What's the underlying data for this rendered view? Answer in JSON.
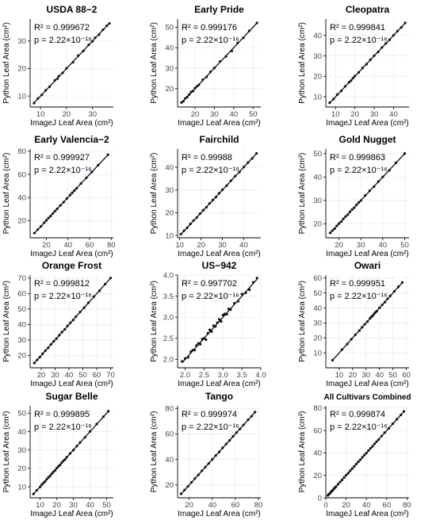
{
  "figure": {
    "xlabel": "ImageJ Leaf Area (cm²)",
    "ylabel": "Python Leaf Area (cm²)",
    "colors": {
      "points": "#111111",
      "fit_line": "#000000",
      "identity_line": "#2b2f9e",
      "grid": "#e6e6e6",
      "axis": "#000000"
    }
  },
  "chart_data": [
    {
      "type": "scatter",
      "title": "USDA 88−2",
      "r2": "R² = 0.999672",
      "p": "p = 2.22×10⁻¹⁶",
      "xlim": [
        6,
        38
      ],
      "ylim": [
        6,
        38
      ],
      "xticks": [
        10,
        20,
        30
      ],
      "yticks": [
        10,
        20,
        30
      ],
      "x": [
        7.5,
        9,
        10.5,
        12,
        13.5,
        15.5,
        16.5,
        17,
        18.5,
        20,
        22.5,
        24.5,
        26.5,
        28.5,
        30,
        31,
        32.5,
        34,
        35.5,
        36.5
      ],
      "y": [
        7.4,
        9.1,
        10.4,
        12.1,
        13.4,
        15.7,
        16.3,
        17.2,
        18.4,
        20.1,
        22.3,
        24.7,
        26.4,
        28.6,
        29.9,
        31.2,
        32.3,
        34.1,
        35.6,
        36.4
      ]
    },
    {
      "type": "scatter",
      "title": "Early Pride",
      "r2": "R² = 0.999176",
      "p": "p = 2.22×10⁻¹⁶",
      "xlim": [
        11,
        54
      ],
      "ylim": [
        11,
        54
      ],
      "xticks": [
        20,
        30,
        40,
        50
      ],
      "yticks": [
        20,
        30,
        40,
        50
      ],
      "x": [
        13,
        14,
        15,
        16,
        17,
        18,
        19,
        20,
        21,
        22,
        24,
        26,
        28,
        30,
        33,
        36,
        39,
        42,
        45,
        48,
        52
      ],
      "y": [
        13.2,
        13.8,
        15.2,
        15.9,
        17.1,
        18.3,
        18.8,
        20.2,
        21.1,
        21.8,
        24.3,
        25.7,
        28.2,
        30.1,
        33.3,
        35.7,
        38.4,
        42.3,
        44.8,
        48.2,
        52.1
      ]
    },
    {
      "type": "scatter",
      "title": "Cleopatra",
      "r2": "R² = 0.999841",
      "p": "p = 2.22×10⁻¹⁶",
      "xlim": [
        5,
        48
      ],
      "ylim": [
        5,
        48
      ],
      "xticks": [
        10,
        20,
        30,
        40
      ],
      "yticks": [
        10,
        20,
        30,
        40
      ],
      "x": [
        7,
        9,
        11,
        13,
        15,
        17,
        18,
        19,
        20,
        22,
        24,
        26,
        28,
        30,
        32,
        34,
        36,
        38,
        40,
        42,
        44,
        46
      ],
      "y": [
        7.1,
        8.9,
        11.1,
        12.9,
        15.1,
        17.1,
        17.9,
        19.1,
        20.1,
        21.9,
        24.1,
        25.9,
        28.1,
        30.1,
        31.9,
        34.1,
        36.1,
        37.9,
        40.1,
        42.1,
        43.9,
        46.1
      ]
    },
    {
      "type": "scatter",
      "title": "Early Valencia−2",
      "r2": "R² = 0.999927",
      "p": "p = 2.22×10⁻¹⁶",
      "xlim": [
        5,
        82
      ],
      "ylim": [
        5,
        82
      ],
      "xticks": [
        20,
        40,
        60,
        80
      ],
      "yticks": [
        20,
        40,
        60,
        80
      ],
      "x": [
        9,
        12,
        15,
        18,
        20,
        22,
        24,
        26,
        28,
        30,
        33,
        36,
        39,
        42,
        44,
        46,
        48,
        52,
        57,
        62,
        68,
        77
      ],
      "y": [
        9.1,
        12.1,
        14.9,
        18.1,
        20.1,
        22.1,
        23.9,
        26.1,
        28.1,
        30.1,
        33.1,
        35.9,
        39.1,
        42.1,
        44.1,
        46.1,
        47.9,
        52.1,
        57.1,
        62.1,
        68.1,
        77.1
      ]
    },
    {
      "type": "scatter",
      "title": "Fairchild",
      "r2": "R² = 0.99988",
      "p": "p = 2.22×10⁻¹⁶",
      "xlim": [
        9,
        48
      ],
      "ylim": [
        9,
        48
      ],
      "xticks": [
        10,
        20,
        30,
        40
      ],
      "yticks": [
        10,
        20,
        30,
        40
      ],
      "x": [
        10.5,
        12,
        13.5,
        15,
        16.5,
        18,
        19.5,
        21,
        22.5,
        24,
        25.5,
        27,
        28.5,
        30,
        32,
        34,
        36,
        38,
        40,
        42,
        44,
        46
      ],
      "y": [
        10.6,
        12.1,
        13.4,
        15.1,
        16.6,
        17.9,
        19.6,
        21.1,
        22.4,
        24.1,
        25.6,
        26.9,
        28.6,
        30.1,
        31.9,
        34.1,
        36.1,
        37.9,
        40.1,
        42.1,
        43.9,
        46.1
      ]
    },
    {
      "type": "scatter",
      "title": "Gold Nugget",
      "r2": "R² = 0.999863",
      "p": "p = 2.22×10⁻¹⁶",
      "xlim": [
        14,
        52
      ],
      "ylim": [
        14,
        52
      ],
      "xticks": [
        20,
        30,
        40,
        50
      ],
      "yticks": [
        20,
        30,
        40,
        50
      ],
      "x": [
        16,
        17,
        18,
        19,
        20,
        21,
        22,
        23,
        24,
        25,
        26,
        27,
        28,
        29,
        30,
        32,
        34,
        36,
        38,
        40,
        43,
        46,
        50
      ],
      "y": [
        16.1,
        17.1,
        17.9,
        19.1,
        20.1,
        20.9,
        22.1,
        23.1,
        23.9,
        25.1,
        26.1,
        26.9,
        28.1,
        29.1,
        29.9,
        32.1,
        34.1,
        35.9,
        38.1,
        40.1,
        42.9,
        46.1,
        50.1
      ]
    },
    {
      "type": "scatter",
      "title": "Orange Frost",
      "r2": "R² = 0.999812",
      "p": "p = 2.22×10⁻¹⁶",
      "xlim": [
        12,
        72
      ],
      "ylim": [
        12,
        72
      ],
      "xticks": [
        20,
        30,
        40,
        50,
        60,
        70
      ],
      "yticks": [
        20,
        30,
        40,
        50,
        60,
        70
      ],
      "x": [
        15,
        17,
        19,
        21,
        23,
        25,
        27,
        29,
        31,
        33,
        35,
        37,
        39,
        41,
        43,
        45,
        48,
        51,
        54,
        58,
        62,
        66,
        70
      ],
      "y": [
        15.1,
        17.1,
        18.9,
        21.1,
        23.1,
        24.9,
        27.1,
        29.1,
        30.9,
        33.1,
        35.1,
        36.9,
        39.1,
        41.1,
        42.9,
        45.1,
        48.1,
        50.9,
        54.1,
        58.1,
        61.9,
        66.1,
        70.1
      ]
    },
    {
      "type": "scatter",
      "title": "US−942",
      "r2": "R² = 0.997702",
      "p": "p = 2.22×10⁻¹⁶",
      "xlim": [
        1.8,
        4.0
      ],
      "ylim": [
        1.8,
        4.0
      ],
      "xticks": [
        2.0,
        2.5,
        3.0,
        3.5,
        4.0
      ],
      "yticks": [
        2.0,
        2.5,
        3.0,
        3.5,
        4.0
      ],
      "x": [
        1.92,
        2.0,
        2.08,
        2.15,
        2.2,
        2.25,
        2.3,
        2.35,
        2.4,
        2.45,
        2.5,
        2.55,
        2.6,
        2.65,
        2.7,
        2.75,
        2.8,
        2.85,
        2.9,
        2.95,
        3.0,
        3.05,
        3.1,
        3.15,
        3.2,
        3.3,
        3.4,
        3.5,
        3.6,
        3.7,
        3.8,
        3.9
      ],
      "y": [
        1.95,
        2.02,
        2.05,
        2.18,
        2.22,
        2.22,
        2.33,
        2.38,
        2.36,
        2.48,
        2.5,
        2.47,
        2.62,
        2.7,
        2.66,
        2.8,
        2.78,
        2.87,
        2.95,
        2.9,
        3.05,
        3.08,
        3.07,
        3.2,
        3.18,
        3.33,
        3.38,
        3.55,
        3.58,
        3.65,
        3.83,
        3.93
      ]
    },
    {
      "type": "scatter",
      "title": "Owari",
      "r2": "R² = 0.999951",
      "p": "p = 2.22×10⁻¹⁶",
      "xlim": [
        0,
        62
      ],
      "ylim": [
        0,
        62
      ],
      "xticks": [
        10,
        20,
        30,
        40,
        50,
        60
      ],
      "yticks": [
        10,
        20,
        30,
        40,
        50,
        60
      ],
      "x": [
        5,
        12,
        16,
        19,
        22,
        25,
        27,
        29,
        31,
        33,
        34,
        35,
        36,
        37,
        38,
        40,
        42,
        44,
        46,
        48,
        51,
        54,
        57
      ],
      "y": [
        5.1,
        12.1,
        15.9,
        19.1,
        22.1,
        24.9,
        27.1,
        29.1,
        30.9,
        33.1,
        34.1,
        34.9,
        36.1,
        37.1,
        37.9,
        40.1,
        42.1,
        43.9,
        46.1,
        48.1,
        51.1,
        54.1,
        57.1
      ]
    },
    {
      "type": "scatter",
      "title": "Sugar Belle",
      "r2": "R² = 0.999895",
      "p": "p = 2.22×10⁻¹⁶",
      "xlim": [
        4,
        54
      ],
      "ylim": [
        4,
        54
      ],
      "xticks": [
        10,
        20,
        30,
        40,
        50
      ],
      "yticks": [
        10,
        20,
        30,
        40,
        50
      ],
      "x": [
        6,
        8,
        10,
        11,
        12,
        13,
        14,
        15,
        16,
        17,
        18,
        19,
        20,
        21,
        22,
        23,
        24,
        25,
        26,
        28,
        30,
        32,
        34,
        37,
        40,
        44,
        48,
        51
      ],
      "y": [
        6.1,
        8.1,
        9.9,
        11.1,
        12.1,
        12.9,
        14.1,
        15.1,
        15.9,
        17.1,
        18.1,
        18.9,
        20.1,
        21.1,
        21.9,
        23.1,
        24.1,
        24.9,
        26.1,
        28.1,
        29.9,
        32.1,
        34.1,
        36.9,
        40.1,
        44.1,
        48.1,
        51.1
      ]
    },
    {
      "type": "scatter",
      "title": "Tango",
      "r2": "R² = 0.999974",
      "p": "p = 2.22×10⁻¹⁶",
      "xlim": [
        10,
        82
      ],
      "ylim": [
        10,
        82
      ],
      "xticks": [
        20,
        40,
        60,
        80
      ],
      "yticks": [
        20,
        40,
        60,
        80
      ],
      "x": [
        13,
        16,
        19,
        22,
        25,
        28,
        31,
        34,
        37,
        40,
        43,
        46,
        49,
        52,
        55,
        58,
        61,
        64,
        67,
        71,
        74,
        77
      ],
      "y": [
        13.1,
        16.1,
        18.9,
        22.1,
        25.1,
        27.9,
        31.1,
        34.1,
        36.9,
        40.1,
        43.1,
        45.9,
        49.1,
        52.1,
        54.9,
        58.1,
        61.1,
        63.9,
        67.1,
        71.1,
        73.9,
        77.1
      ]
    },
    {
      "type": "scatter",
      "title": "All Cultivars Combined",
      "r2": "R² = 0.999874",
      "p": "p = 2.22×10⁻¹⁶",
      "xlim": [
        0,
        82
      ],
      "ylim": [
        0,
        82
      ],
      "xticks": [
        0,
        20,
        40,
        60,
        80
      ],
      "yticks": [
        0,
        20,
        40,
        60,
        80
      ],
      "x": [
        2,
        3,
        4,
        5,
        6,
        7,
        8,
        9,
        10,
        12,
        14,
        16,
        18,
        20,
        22,
        24,
        26,
        28,
        30,
        32,
        34,
        36,
        38,
        40,
        42,
        44,
        46,
        48,
        50,
        52,
        55,
        58,
        62,
        66,
        70,
        74,
        77
      ],
      "y": [
        2.1,
        3.1,
        3.9,
        5.1,
        6.1,
        6.9,
        8.1,
        9.1,
        9.9,
        12.1,
        14.1,
        15.9,
        18.1,
        20.1,
        21.9,
        24.1,
        26.1,
        27.9,
        30.1,
        32.1,
        33.9,
        36.1,
        38.1,
        39.9,
        42.1,
        44.1,
        45.9,
        48.1,
        50.1,
        51.9,
        55.1,
        58.1,
        61.9,
        66.1,
        70.1,
        73.9,
        77.1
      ]
    }
  ]
}
